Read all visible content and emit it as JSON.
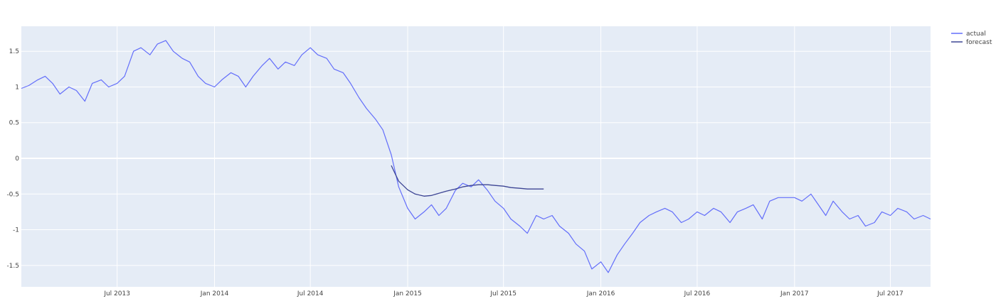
{
  "chart_data": {
    "type": "line",
    "title": "",
    "xlabel": "",
    "ylabel": "",
    "legend_position": "top-right",
    "grid": true,
    "ylim": [
      -1.8,
      1.85
    ],
    "xlim": [
      "2013-01-01",
      "2017-09-15"
    ],
    "x_ticks": [
      {
        "date": "2013-07-01",
        "label": "Jul 2013"
      },
      {
        "date": "2014-01-01",
        "label": "Jan 2014"
      },
      {
        "date": "2014-07-01",
        "label": "Jul 2014"
      },
      {
        "date": "2015-01-01",
        "label": "Jan 2015"
      },
      {
        "date": "2015-07-01",
        "label": "Jul 2015"
      },
      {
        "date": "2016-01-01",
        "label": "Jan 2016"
      },
      {
        "date": "2016-07-01",
        "label": "Jul 2016"
      },
      {
        "date": "2017-01-01",
        "label": "Jan 2017"
      },
      {
        "date": "2017-07-01",
        "label": "Jul 2017"
      }
    ],
    "y_ticks": [
      {
        "value": 1.5,
        "label": "1.5"
      },
      {
        "value": 1.0,
        "label": "1"
      },
      {
        "value": 0.5,
        "label": "0.5"
      },
      {
        "value": 0.0,
        "label": "0"
      },
      {
        "value": -0.5,
        "label": "-0.5"
      },
      {
        "value": -1.0,
        "label": "-1"
      },
      {
        "value": -1.5,
        "label": "-1.5"
      }
    ],
    "colors": {
      "plot_bg": "#e5ecf6",
      "grid": "#ffffff",
      "actual": "#636efa",
      "forecast": "#3d4594"
    },
    "series": [
      {
        "name": "actual",
        "x": [
          "2013-01-01",
          "2013-01-15",
          "2013-02-01",
          "2013-02-15",
          "2013-03-01",
          "2013-03-15",
          "2013-04-01",
          "2013-04-15",
          "2013-05-01",
          "2013-05-15",
          "2013-06-01",
          "2013-06-15",
          "2013-07-01",
          "2013-07-15",
          "2013-08-01",
          "2013-08-15",
          "2013-09-01",
          "2013-09-15",
          "2013-10-01",
          "2013-10-15",
          "2013-11-01",
          "2013-11-15",
          "2013-12-01",
          "2013-12-15",
          "2014-01-01",
          "2014-01-15",
          "2014-02-01",
          "2014-02-15",
          "2014-03-01",
          "2014-03-15",
          "2014-04-01",
          "2014-04-15",
          "2014-05-01",
          "2014-05-15",
          "2014-06-01",
          "2014-06-15",
          "2014-07-01",
          "2014-07-15",
          "2014-08-01",
          "2014-08-15",
          "2014-09-01",
          "2014-09-15",
          "2014-10-01",
          "2014-10-15",
          "2014-11-01",
          "2014-11-15",
          "2014-12-01",
          "2014-12-15",
          "2015-01-01",
          "2015-01-15",
          "2015-02-01",
          "2015-02-15",
          "2015-03-01",
          "2015-03-15",
          "2015-04-01",
          "2015-04-15",
          "2015-05-01",
          "2015-05-15",
          "2015-06-01",
          "2015-06-15",
          "2015-07-01",
          "2015-07-15",
          "2015-08-01",
          "2015-08-15",
          "2015-09-01",
          "2015-09-15",
          "2015-10-01",
          "2015-10-15",
          "2015-11-01",
          "2015-11-15",
          "2015-12-01",
          "2015-12-15",
          "2016-01-01",
          "2016-01-15",
          "2016-02-01",
          "2016-02-15",
          "2016-03-01",
          "2016-03-15",
          "2016-04-01",
          "2016-04-15",
          "2016-05-01",
          "2016-05-15",
          "2016-06-01",
          "2016-06-15",
          "2016-07-01",
          "2016-07-15",
          "2016-08-01",
          "2016-08-15",
          "2016-09-01",
          "2016-09-15",
          "2016-10-01",
          "2016-10-15",
          "2016-11-01",
          "2016-11-15",
          "2016-12-01",
          "2016-12-15",
          "2017-01-01",
          "2017-01-15",
          "2017-02-01",
          "2017-02-15",
          "2017-03-01",
          "2017-03-15",
          "2017-04-01",
          "2017-04-15",
          "2017-05-01",
          "2017-05-15",
          "2017-06-01",
          "2017-06-15",
          "2017-07-01",
          "2017-07-15",
          "2017-08-01",
          "2017-08-15",
          "2017-09-01",
          "2017-09-15"
        ],
        "y": [
          0.98,
          1.02,
          1.1,
          1.15,
          1.05,
          0.9,
          1.0,
          0.95,
          0.8,
          1.05,
          1.1,
          1.0,
          1.05,
          1.15,
          1.5,
          1.55,
          1.45,
          1.6,
          1.65,
          1.5,
          1.4,
          1.35,
          1.15,
          1.05,
          1.0,
          1.1,
          1.2,
          1.15,
          1.0,
          1.15,
          1.3,
          1.4,
          1.25,
          1.35,
          1.3,
          1.45,
          1.55,
          1.45,
          1.4,
          1.25,
          1.2,
          1.05,
          0.85,
          0.7,
          0.55,
          0.4,
          0.05,
          -0.4,
          -0.7,
          -0.85,
          -0.75,
          -0.65,
          -0.8,
          -0.7,
          -0.45,
          -0.35,
          -0.4,
          -0.3,
          -0.45,
          -0.6,
          -0.7,
          -0.85,
          -0.95,
          -1.05,
          -0.8,
          -0.85,
          -0.8,
          -0.95,
          -1.05,
          -1.2,
          -1.3,
          -1.55,
          -1.45,
          -1.6,
          -1.35,
          -1.2,
          -1.05,
          -0.9,
          -0.8,
          -0.75,
          -0.7,
          -0.75,
          -0.9,
          -0.85,
          -0.75,
          -0.8,
          -0.7,
          -0.75,
          -0.9,
          -0.75,
          -0.7,
          -0.65,
          -0.85,
          -0.6,
          -0.55,
          -0.55,
          -0.55,
          -0.6,
          -0.5,
          -0.65,
          -0.8,
          -0.6,
          -0.75,
          -0.85,
          -0.8,
          -0.95,
          -0.9,
          -0.75,
          -0.8,
          -0.7,
          -0.75,
          -0.85,
          -0.8,
          -0.85
        ]
      },
      {
        "name": "forecast",
        "x": [
          "2014-12-01",
          "2014-12-15",
          "2015-01-01",
          "2015-01-15",
          "2015-02-01",
          "2015-02-15",
          "2015-03-01",
          "2015-03-15",
          "2015-04-01",
          "2015-04-15",
          "2015-05-01",
          "2015-05-15",
          "2015-06-01",
          "2015-06-15",
          "2015-07-01",
          "2015-07-15",
          "2015-08-01",
          "2015-08-15",
          "2015-09-01",
          "2015-09-15"
        ],
        "y": [
          -0.1,
          -0.32,
          -0.44,
          -0.5,
          -0.53,
          -0.52,
          -0.49,
          -0.46,
          -0.43,
          -0.4,
          -0.38,
          -0.37,
          -0.37,
          -0.38,
          -0.39,
          -0.41,
          -0.42,
          -0.43,
          -0.43,
          -0.43
        ]
      }
    ]
  }
}
